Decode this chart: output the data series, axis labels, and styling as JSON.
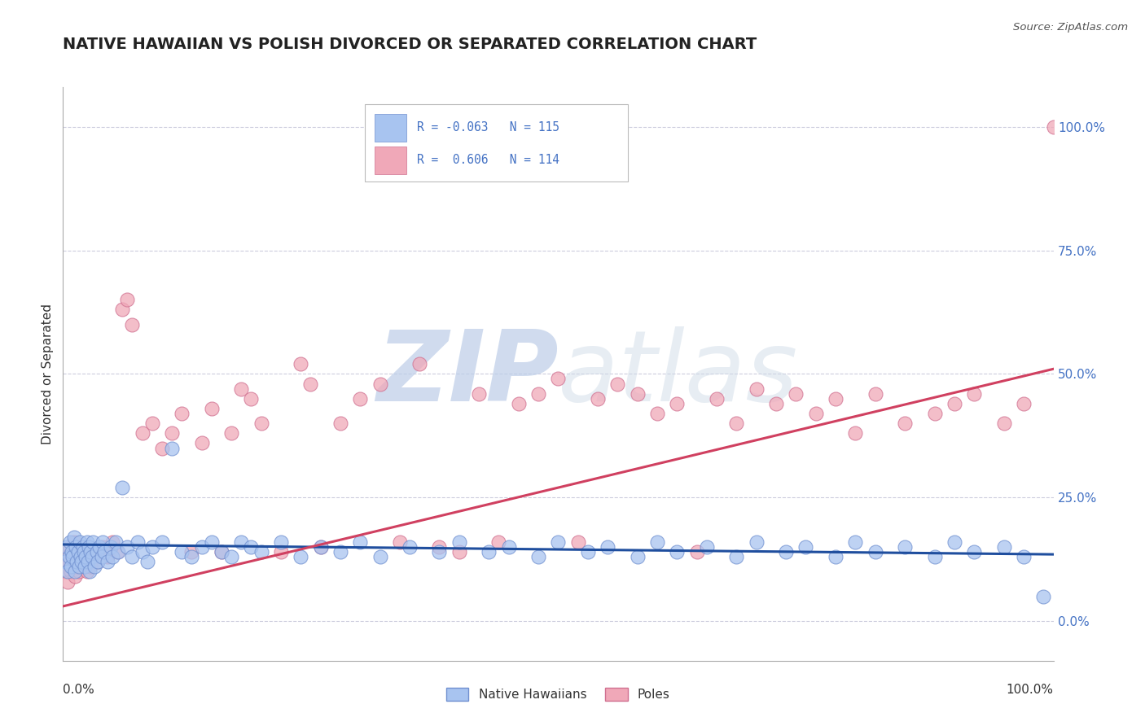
{
  "title": "NATIVE HAWAIIAN VS POLISH DIVORCED OR SEPARATED CORRELATION CHART",
  "source_text": "Source: ZipAtlas.com",
  "ylabel": "Divorced or Separated",
  "ytick_values": [
    0,
    25,
    50,
    75,
    100
  ],
  "ytick_labels": [
    "0.0%",
    "25.0%",
    "50.0%",
    "75.0%",
    "100.0%"
  ],
  "xlim": [
    0,
    100
  ],
  "ylim": [
    -8,
    108
  ],
  "legend_r_blue": "-0.063",
  "legend_n_blue": "115",
  "legend_r_pink": "0.606",
  "legend_n_pink": "114",
  "blue_color": "#a8c4f0",
  "pink_color": "#f0a8b8",
  "blue_edge_color": "#7090d0",
  "pink_edge_color": "#d07090",
  "blue_line_color": "#1f4e9e",
  "pink_line_color": "#d04060",
  "blue_label": "Native Hawaiians",
  "pink_label": "Poles",
  "grid_color": "#ccccdd",
  "background_color": "#ffffff",
  "title_fontsize": 14,
  "axis_label_fontsize": 11,
  "tick_fontsize": 11,
  "blue_trend_x": [
    0,
    100
  ],
  "blue_trend_y": [
    15.5,
    13.5
  ],
  "pink_trend_x": [
    0,
    100
  ],
  "pink_trend_y": [
    3.0,
    51.0
  ],
  "blue_scatter_x": [
    0.2,
    0.4,
    0.5,
    0.6,
    0.7,
    0.8,
    0.9,
    1.0,
    1.1,
    1.2,
    1.3,
    1.4,
    1.5,
    1.6,
    1.7,
    1.8,
    1.9,
    2.0,
    2.1,
    2.2,
    2.3,
    2.4,
    2.5,
    2.6,
    2.7,
    2.8,
    2.9,
    3.0,
    3.2,
    3.4,
    3.5,
    3.7,
    3.9,
    4.0,
    4.2,
    4.5,
    4.8,
    5.0,
    5.3,
    5.6,
    6.0,
    6.5,
    7.0,
    7.5,
    8.0,
    8.5,
    9.0,
    10.0,
    11.0,
    12.0,
    13.0,
    14.0,
    15.0,
    16.0,
    17.0,
    18.0,
    19.0,
    20.0,
    22.0,
    24.0,
    26.0,
    28.0,
    30.0,
    32.0,
    35.0,
    38.0,
    40.0,
    43.0,
    45.0,
    48.0,
    50.0,
    53.0,
    55.0,
    58.0,
    60.0,
    62.0,
    65.0,
    68.0,
    70.0,
    73.0,
    75.0,
    78.0,
    80.0,
    82.0,
    85.0,
    88.0,
    90.0,
    92.0,
    95.0,
    97.0,
    99.0
  ],
  "blue_scatter_y": [
    12.0,
    15.0,
    10.0,
    13.0,
    16.0,
    11.0,
    14.0,
    13.0,
    17.0,
    10.0,
    15.0,
    12.0,
    14.0,
    11.0,
    16.0,
    13.0,
    12.0,
    15.0,
    14.0,
    11.0,
    13.0,
    16.0,
    12.0,
    15.0,
    10.0,
    14.0,
    13.0,
    16.0,
    11.0,
    14.0,
    12.0,
    15.0,
    13.0,
    16.0,
    14.0,
    12.0,
    15.0,
    13.0,
    16.0,
    14.0,
    27.0,
    15.0,
    13.0,
    16.0,
    14.0,
    12.0,
    15.0,
    16.0,
    35.0,
    14.0,
    13.0,
    15.0,
    16.0,
    14.0,
    13.0,
    16.0,
    15.0,
    14.0,
    16.0,
    13.0,
    15.0,
    14.0,
    16.0,
    13.0,
    15.0,
    14.0,
    16.0,
    14.0,
    15.0,
    13.0,
    16.0,
    14.0,
    15.0,
    13.0,
    16.0,
    14.0,
    15.0,
    13.0,
    16.0,
    14.0,
    15.0,
    13.0,
    16.0,
    14.0,
    15.0,
    13.0,
    16.0,
    14.0,
    15.0,
    13.0,
    5.0
  ],
  "pink_scatter_x": [
    0.2,
    0.4,
    0.5,
    0.6,
    0.7,
    0.8,
    0.9,
    1.0,
    1.1,
    1.2,
    1.3,
    1.4,
    1.5,
    1.6,
    1.7,
    1.8,
    1.9,
    2.0,
    2.2,
    2.4,
    2.6,
    2.8,
    3.0,
    3.5,
    4.0,
    4.5,
    5.0,
    5.5,
    6.0,
    6.5,
    7.0,
    8.0,
    9.0,
    10.0,
    11.0,
    12.0,
    13.0,
    14.0,
    15.0,
    16.0,
    17.0,
    18.0,
    19.0,
    20.0,
    22.0,
    24.0,
    25.0,
    26.0,
    28.0,
    30.0,
    32.0,
    34.0,
    36.0,
    38.0,
    40.0,
    42.0,
    44.0,
    46.0,
    48.0,
    50.0,
    52.0,
    54.0,
    56.0,
    58.0,
    60.0,
    62.0,
    64.0,
    66.0,
    68.0,
    70.0,
    72.0,
    74.0,
    76.0,
    78.0,
    80.0,
    82.0,
    85.0,
    88.0,
    90.0,
    92.0,
    95.0,
    97.0,
    100.0
  ],
  "pink_scatter_y": [
    10.0,
    13.0,
    8.0,
    12.0,
    15.0,
    10.0,
    13.0,
    11.0,
    16.0,
    9.0,
    14.0,
    11.0,
    13.0,
    10.0,
    15.0,
    12.0,
    11.0,
    14.0,
    12.0,
    10.0,
    13.0,
    11.0,
    14.0,
    12.0,
    15.0,
    13.0,
    16.0,
    14.0,
    63.0,
    65.0,
    60.0,
    38.0,
    40.0,
    35.0,
    38.0,
    42.0,
    14.0,
    36.0,
    43.0,
    14.0,
    38.0,
    47.0,
    45.0,
    40.0,
    14.0,
    52.0,
    48.0,
    15.0,
    40.0,
    45.0,
    48.0,
    16.0,
    52.0,
    15.0,
    14.0,
    46.0,
    16.0,
    44.0,
    46.0,
    49.0,
    16.0,
    45.0,
    48.0,
    46.0,
    42.0,
    44.0,
    14.0,
    45.0,
    40.0,
    47.0,
    44.0,
    46.0,
    42.0,
    45.0,
    38.0,
    46.0,
    40.0,
    42.0,
    44.0,
    46.0,
    40.0,
    44.0,
    100.0
  ]
}
